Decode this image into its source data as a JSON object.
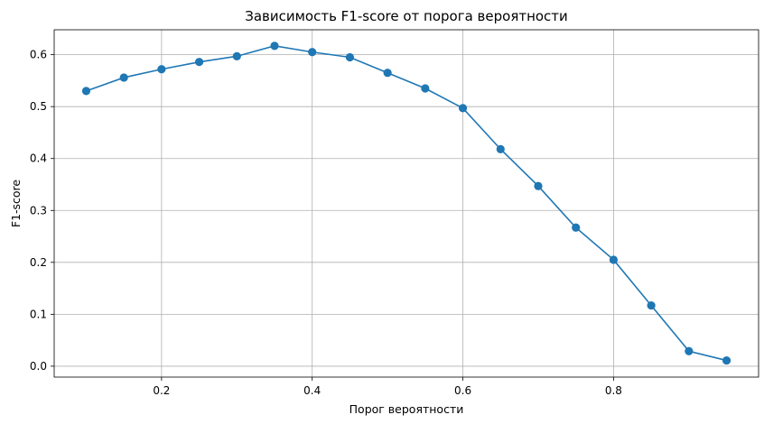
{
  "chart_data": {
    "type": "line",
    "title": "Зависимость F1-score от порога вероятности",
    "xlabel": "Порог вероятности",
    "ylabel": "F1-score",
    "xlim": [
      0.0575,
      0.9925
    ],
    "ylim": [
      -0.021,
      0.648
    ],
    "xticks": [
      0.2,
      0.4,
      0.6,
      0.8
    ],
    "xtick_labels": [
      "0.2",
      "0.4",
      "0.6",
      "0.8"
    ],
    "yticks": [
      0.0,
      0.1,
      0.2,
      0.3,
      0.4,
      0.5,
      0.6
    ],
    "ytick_labels": [
      "0.0",
      "0.1",
      "0.2",
      "0.3",
      "0.4",
      "0.5",
      "0.6"
    ],
    "grid": true,
    "legend": null,
    "colors": {
      "series": "#1f77b4",
      "grid": "#b0b0b0",
      "axes": "#000000"
    },
    "series": [
      {
        "marker": "circle",
        "x": [
          0.1,
          0.15,
          0.2,
          0.25,
          0.3,
          0.35,
          0.4,
          0.45,
          0.5,
          0.55,
          0.6,
          0.65,
          0.7,
          0.75,
          0.8,
          0.85,
          0.9,
          0.95
        ],
        "y": [
          0.53,
          0.556,
          0.572,
          0.586,
          0.597,
          0.617,
          0.605,
          0.595,
          0.565,
          0.535,
          0.497,
          0.418,
          0.347,
          0.267,
          0.205,
          0.117,
          0.029,
          0.011
        ]
      }
    ]
  }
}
